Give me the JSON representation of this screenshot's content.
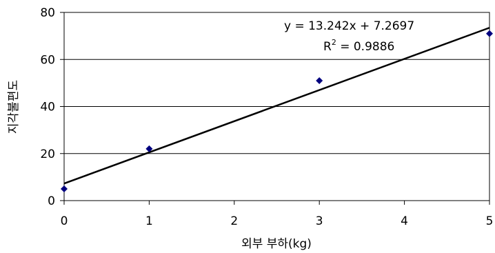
{
  "chart_data": {
    "type": "scatter",
    "xlabel": "외부 부하(kg)",
    "ylabel": "지각불편도",
    "xlim": [
      0,
      5
    ],
    "ylim": [
      0,
      80
    ],
    "x_ticks": [
      "0",
      "1",
      "2",
      "3",
      "4",
      "5"
    ],
    "y_ticks": [
      "0",
      "20",
      "40",
      "60",
      "80"
    ],
    "grid": "horizontal",
    "series": [
      {
        "points": [
          {
            "x": 0,
            "y": 5
          },
          {
            "x": 1,
            "y": 22
          },
          {
            "x": 3,
            "y": 51
          },
          {
            "x": 5,
            "y": 71
          }
        ],
        "color": "#00007f"
      }
    ],
    "trendline": {
      "slope": 13.242,
      "intercept": 7.2697,
      "color": "#000000"
    },
    "annotations": {
      "equation": "y = 13.242x + 7.2697",
      "r2_prefix": "R",
      "r2_exp": "2",
      "r2_value": " = 0.9886"
    }
  }
}
